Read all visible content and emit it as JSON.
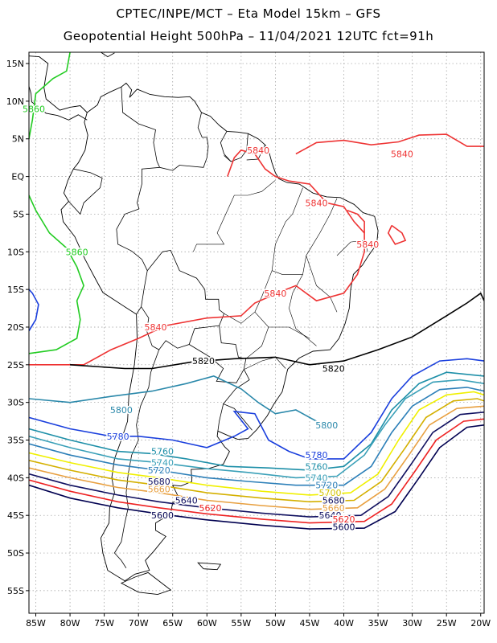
{
  "title_line1": "CPTEC/INPE/MCT –  Eta Model 15km – GFS",
  "title_line2": "Geopotential Height 500hPa – 11/04/2021 12UTC fct=91h",
  "lat_labels": [
    "15N",
    "10N",
    "5N",
    "EQ",
    "5S",
    "10S",
    "15S",
    "20S",
    "25S",
    "30S",
    "35S",
    "40S",
    "45S",
    "50S",
    "55S"
  ],
  "lon_labels": [
    "85W",
    "80W",
    "75W",
    "70W",
    "65W",
    "60W",
    "55W",
    "50W",
    "45W",
    "40W",
    "35W",
    "30W",
    "25W",
    "20W"
  ],
  "map": {
    "lon_range": [
      -86,
      -19.5
    ],
    "lat_range": [
      -58,
      16.5
    ],
    "grid": "dotted",
    "projection": "cylindrical"
  },
  "contour_levels": [
    {
      "value": "5860",
      "color": "#22cc22"
    },
    {
      "value": "5840",
      "color": "#ee3333"
    },
    {
      "value": "5820",
      "color": "#000000"
    },
    {
      "value": "5800",
      "color": "#2a88aa"
    },
    {
      "value": "5780",
      "color": "#1a3fdd"
    },
    {
      "value": "5760",
      "color": "#1d8fa8"
    },
    {
      "value": "5740",
      "color": "#3aa0b8"
    },
    {
      "value": "5720",
      "color": "#2c7fb8"
    },
    {
      "value": "5700",
      "color": "#f0f000"
    },
    {
      "value": "5680",
      "color": "#d4b000"
    },
    {
      "value": "5660",
      "color": "#e8a040"
    },
    {
      "value": "5640",
      "color": "#101060"
    },
    {
      "value": "5620",
      "color": "#ee2222"
    },
    {
      "value": "5600",
      "color": "#000050"
    }
  ],
  "contour_labels": [
    {
      "text": "5860",
      "lon": -85.3,
      "lat": 9,
      "color": "#22cc22"
    },
    {
      "text": "5860",
      "lon": -79,
      "lat": -10,
      "color": "#22cc22"
    },
    {
      "text": "5840",
      "lon": -52.5,
      "lat": 3.5,
      "color": "#ee3333"
    },
    {
      "text": "5840",
      "lon": -31.5,
      "lat": 3,
      "color": "#ee3333"
    },
    {
      "text": "5840",
      "lon": -44,
      "lat": -3.5,
      "color": "#ee3333"
    },
    {
      "text": "5840",
      "lon": -36.5,
      "lat": -9,
      "color": "#ee3333"
    },
    {
      "text": "5840",
      "lon": -50,
      "lat": -15.5,
      "color": "#ee3333"
    },
    {
      "text": "5840",
      "lon": -67.5,
      "lat": -20,
      "color": "#ee3333"
    },
    {
      "text": "5820",
      "lon": -60.5,
      "lat": -24.5,
      "color": "#000000"
    },
    {
      "text": "5820",
      "lon": -41.5,
      "lat": -25.5,
      "color": "#000000"
    },
    {
      "text": "5800",
      "lon": -72.5,
      "lat": -31,
      "color": "#2a88aa"
    },
    {
      "text": "5800",
      "lon": -42.5,
      "lat": -33,
      "color": "#2a88aa"
    },
    {
      "text": "5780",
      "lon": -73,
      "lat": -34.5,
      "color": "#1a3fdd"
    },
    {
      "text": "5780",
      "lon": -44,
      "lat": -37,
      "color": "#1a3fdd"
    },
    {
      "text": "5760",
      "lon": -66.5,
      "lat": -36.5,
      "color": "#1d8fa8"
    },
    {
      "text": "5760",
      "lon": -44,
      "lat": -38.5,
      "color": "#1d8fa8"
    },
    {
      "text": "5740",
      "lon": -66.5,
      "lat": -38,
      "color": "#3aa0b8"
    },
    {
      "text": "5740",
      "lon": -44,
      "lat": -40,
      "color": "#3aa0b8"
    },
    {
      "text": "5720",
      "lon": -67,
      "lat": -39,
      "color": "#2c7fb8"
    },
    {
      "text": "5720",
      "lon": -42.5,
      "lat": -41,
      "color": "#2c7fb8"
    },
    {
      "text": "5700",
      "lon": -42,
      "lat": -42,
      "color": "#d4c400"
    },
    {
      "text": "5680",
      "lon": -67,
      "lat": -40.5,
      "color": "#101060"
    },
    {
      "text": "5680",
      "lon": -41.5,
      "lat": -43,
      "color": "#101060"
    },
    {
      "text": "5660",
      "lon": -67,
      "lat": -41.5,
      "color": "#e8a040"
    },
    {
      "text": "5660",
      "lon": -41.5,
      "lat": -44,
      "color": "#e8a040"
    },
    {
      "text": "5640",
      "lon": -63,
      "lat": -43,
      "color": "#101060"
    },
    {
      "text": "5640",
      "lon": -42,
      "lat": -45,
      "color": "#101060"
    },
    {
      "text": "5620",
      "lon": -59.5,
      "lat": -44,
      "color": "#ee2222"
    },
    {
      "text": "5620",
      "lon": -40,
      "lat": -45.5,
      "color": "#ee2222"
    },
    {
      "text": "5600",
      "lon": -66.5,
      "lat": -45,
      "color": "#000050"
    },
    {
      "text": "5600",
      "lon": -40,
      "lat": -46.5,
      "color": "#000050"
    }
  ]
}
